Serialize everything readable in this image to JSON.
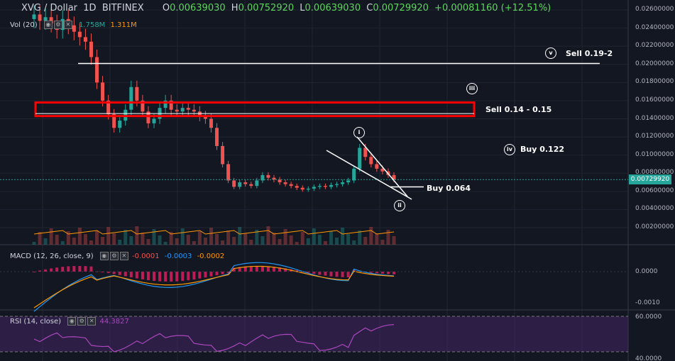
{
  "header": {
    "symbol": "XVG / Dollar",
    "interval": "1D",
    "exchange": "BITFINEX",
    "open_label": "O",
    "open": "0.00639030",
    "high_label": "H",
    "high": "0.00752920",
    "low_label": "L",
    "low": "0.00639030",
    "close_label": "C",
    "close": "0.00729920",
    "change": "+0.00081160 (+12.51%)"
  },
  "volume": {
    "label": "Vol (20)",
    "v1": "1.758M",
    "v2": "1.311M"
  },
  "macd": {
    "label": "MACD (12, 26, close, 9)",
    "v1": "-0.0001",
    "v2": "-0.0003",
    "v3": "-0.0002"
  },
  "rsi": {
    "label": "RSI (14, close)",
    "value": "44.3827"
  },
  "price_axis": {
    "ticks": [
      "0.02600000",
      "0.02400000",
      "0.02200000",
      "0.02000000",
      "0.01800000",
      "0.01600000",
      "0.01400000",
      "0.01200000",
      "0.01000000",
      "0.00800000",
      "0.00600000",
      "0.00400000",
      "0.00200000"
    ],
    "current": "0.00729920"
  },
  "macd_axis": {
    "ticks": [
      "0.0000",
      "-0.0010"
    ]
  },
  "rsi_axis": {
    "ticks": [
      "60.0000",
      "40.0000"
    ]
  },
  "annotations": {
    "sell1": "Sell 0.19-2",
    "sell2": "Sell 0.14 - 0.15",
    "buy1": "Buy 0.122",
    "buy2": "Buy 0.064",
    "w1": "i",
    "w2": "ii",
    "w3": "iii",
    "w4": "iv",
    "w5": "v"
  },
  "colors": {
    "up": "#26a69a",
    "down": "#ef5350",
    "bg": "#131722",
    "zone": "#ff0000",
    "macd": "#2196f3",
    "signal": "#ff9800",
    "rsi": "#8e44ad"
  },
  "chart_data": {
    "type": "candlestick",
    "title": "XVG / Dollar 1D BITFINEX",
    "ylim": [
      0.001,
      0.027
    ],
    "levels": [
      {
        "name": "Sell 0.19-2",
        "price": 0.0201
      },
      {
        "name": "Sell 0.14 - 0.15",
        "range": [
          0.0143,
          0.0158
        ]
      },
      {
        "name": "Buy 0.122",
        "price": 0.0122
      },
      {
        "name": "Buy 0.064",
        "price": 0.0065
      }
    ],
    "close_series_approx": [
      0.0255,
      0.0248,
      0.0252,
      0.0245,
      0.0238,
      0.025,
      0.0243,
      0.0236,
      0.023,
      0.0225,
      0.0208,
      0.018,
      0.016,
      0.0145,
      0.013,
      0.0138,
      0.015,
      0.0175,
      0.016,
      0.0148,
      0.0135,
      0.014,
      0.0152,
      0.016,
      0.015,
      0.0148,
      0.0152,
      0.015,
      0.0148,
      0.0143,
      0.014,
      0.013,
      0.011,
      0.009,
      0.0072,
      0.0065,
      0.007,
      0.0068,
      0.0066,
      0.0072,
      0.0078,
      0.0075,
      0.0073,
      0.007,
      0.0068,
      0.0066,
      0.0064,
      0.0062,
      0.0063,
      0.0065,
      0.0066,
      0.0065,
      0.0067,
      0.0068,
      0.007,
      0.0072,
      0.0085,
      0.0108,
      0.0098,
      0.009,
      0.0085,
      0.0082,
      0.0078,
      0.0073
    ]
  }
}
